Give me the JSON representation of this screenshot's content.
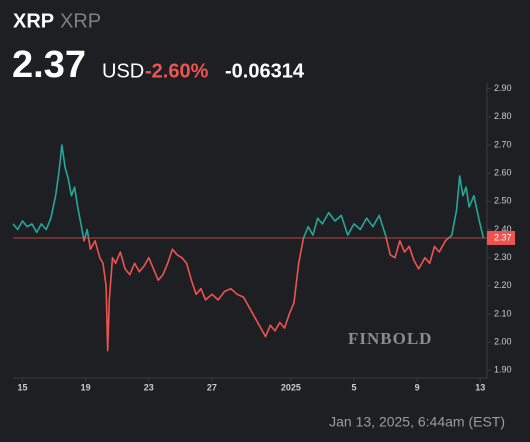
{
  "header": {
    "symbol": "XRP",
    "name": "XRP",
    "currency": "USD",
    "change_pct": "-2.60%",
    "change": "-0.06314"
  },
  "footer": {
    "timestamp": "Jan 13, 2025, 6:44am (EST)"
  },
  "watermark": "FINBOLD",
  "chart_data": {
    "type": "line",
    "last_value": 2.37,
    "up_color": "#26a69a",
    "down_color": "#ef5350",
    "x": [
      -0.6,
      -0.3,
      0,
      0.3,
      0.6,
      0.9,
      1.2,
      1.5,
      1.8,
      2.1,
      2.3,
      2.5,
      2.7,
      2.9,
      3.1,
      3.3,
      3.5,
      3.7,
      3.9,
      4.1,
      4.3,
      4.6,
      4.9,
      5.1,
      5.3,
      5.4,
      5.5,
      5.7,
      5.9,
      6.2,
      6.5,
      6.8,
      7.1,
      7.4,
      7.7,
      8.0,
      8.3,
      8.6,
      8.9,
      9.2,
      9.5,
      9.8,
      10.1,
      10.4,
      10.7,
      11.0,
      11.3,
      11.6,
      12.0,
      12.4,
      12.8,
      13.2,
      13.6,
      14.0,
      14.4,
      14.8,
      15.1,
      15.4,
      15.7,
      16.0,
      16.3,
      16.6,
      16.9,
      17.2,
      17.5,
      17.8,
      18.1,
      18.4,
      18.7,
      19.0,
      19.4,
      19.8,
      20.2,
      20.6,
      21.0,
      21.4,
      21.8,
      22.2,
      22.6,
      23.0,
      23.3,
      23.6,
      23.9,
      24.2,
      24.5,
      24.8,
      25.1,
      25.5,
      25.8,
      26.1,
      26.4,
      26.8,
      27.2,
      27.5,
      27.7,
      27.9,
      28.1,
      28.3,
      28.6,
      28.9,
      29.2
    ],
    "values": [
      2.42,
      2.4,
      2.43,
      2.41,
      2.42,
      2.39,
      2.42,
      2.4,
      2.44,
      2.52,
      2.6,
      2.7,
      2.62,
      2.58,
      2.52,
      2.55,
      2.48,
      2.42,
      2.36,
      2.4,
      2.33,
      2.36,
      2.3,
      2.28,
      2.2,
      1.97,
      2.15,
      2.3,
      2.28,
      2.32,
      2.26,
      2.24,
      2.28,
      2.25,
      2.27,
      2.3,
      2.26,
      2.22,
      2.24,
      2.28,
      2.33,
      2.31,
      2.3,
      2.28,
      2.22,
      2.17,
      2.19,
      2.15,
      2.17,
      2.15,
      2.18,
      2.19,
      2.17,
      2.16,
      2.12,
      2.08,
      2.05,
      2.02,
      2.06,
      2.04,
      2.07,
      2.05,
      2.1,
      2.14,
      2.28,
      2.37,
      2.41,
      2.38,
      2.44,
      2.42,
      2.46,
      2.43,
      2.45,
      2.38,
      2.42,
      2.4,
      2.44,
      2.41,
      2.45,
      2.38,
      2.31,
      2.3,
      2.36,
      2.32,
      2.34,
      2.29,
      2.26,
      2.3,
      2.28,
      2.34,
      2.32,
      2.36,
      2.38,
      2.47,
      2.59,
      2.52,
      2.55,
      2.48,
      2.52,
      2.44,
      2.37
    ],
    "xlim": [
      -0.6,
      29.3
    ],
    "xticks": [
      {
        "value": 0,
        "label": "15"
      },
      {
        "value": 4,
        "label": "19"
      },
      {
        "value": 8,
        "label": "23"
      },
      {
        "value": 12,
        "label": "27"
      },
      {
        "value": 17,
        "label": "2025"
      },
      {
        "value": 21,
        "label": "5"
      },
      {
        "value": 25,
        "label": "9"
      },
      {
        "value": 29,
        "label": "13"
      }
    ],
    "ylim": [
      1.88,
      2.92
    ],
    "yticks": [
      {
        "value": 1.9,
        "label": "1.90"
      },
      {
        "value": 2.0,
        "label": "2.00"
      },
      {
        "value": 2.1,
        "label": "2.10"
      },
      {
        "value": 2.2,
        "label": "2.20"
      },
      {
        "value": 2.3,
        "label": "2.30"
      },
      {
        "value": 2.4,
        "label": "2.40"
      },
      {
        "value": 2.5,
        "label": "2.50"
      },
      {
        "value": 2.6,
        "label": "2.60"
      },
      {
        "value": 2.7,
        "label": "2.70"
      },
      {
        "value": 2.8,
        "label": "2.80"
      },
      {
        "value": 2.9,
        "label": "2.90"
      }
    ],
    "grid": false
  }
}
